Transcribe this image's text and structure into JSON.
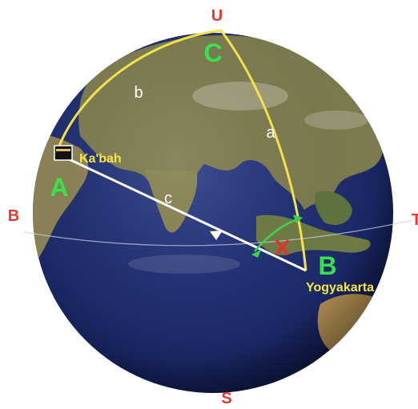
{
  "compass": {
    "north": "U",
    "south": "S",
    "west": "B",
    "east": "T",
    "color": "#e23a2e"
  },
  "vertices": {
    "a": "A",
    "b": "B",
    "c": "C",
    "color": "#39e14a"
  },
  "sides": {
    "a": "a",
    "b": "b",
    "c": "c",
    "color": "#ffffff"
  },
  "places": {
    "kabah": "Ka'bah",
    "yogyakarta": "Yogyakarta",
    "color": "#f4e64a"
  },
  "colors": {
    "arc": "#f2e24a",
    "path": "#ffffff",
    "angle_arc": "#3fd24e",
    "angle_mark": "#e3322a",
    "ocean": "#1c2a6a",
    "land": "#7a7a4c"
  }
}
